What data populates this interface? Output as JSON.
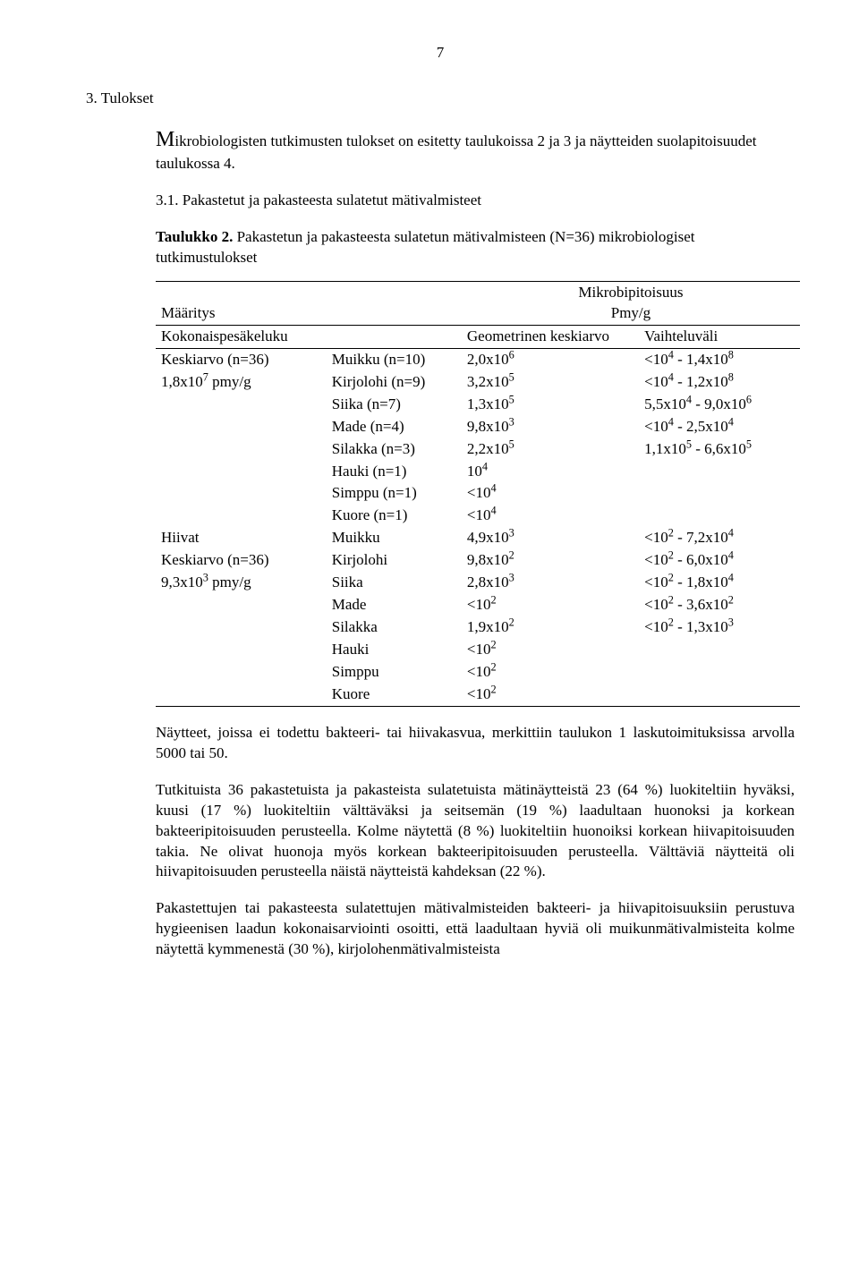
{
  "page_number": "7",
  "section_number": "3.",
  "section_title": "Tulokset",
  "para1_a": "M",
  "para1_b": "ikrobiologisten tutkimusten tulokset on esitetty taulukoissa 2 ja 3 ja näytteiden suolapitoisuudet taulukossa 4.",
  "sub_item": "3.1. Pakastetut ja pakasteesta sulatetut mätivalmisteet",
  "table_label": "Taulukko 2.",
  "table_caption": " Pakastetun ja pakasteesta sulatetun mätivalmisteen (N=36) mikrobiologiset tutkimustulokset",
  "hdr_left": "Määritys",
  "hdr_right_1": "Mikrobipitoisuus",
  "hdr_right_2": "Pmy/g",
  "sub_geo": "Geometrinen keskiarvo",
  "sub_range": "Vaihteluväli",
  "grp1_name": "Kokonaispesäkeluku",
  "grp1_avg_label": "Keskiarvo (n=36)",
  "grp1_pmy_a": "1,8x10",
  "grp1_pmy_exp": "7",
  "grp1_pmy_b": " pmy/g",
  "g1r1_sp": "Muikku (n=10)",
  "g1r1_v_a": "2,0x10",
  "g1r1_v_e": "6",
  "g1r1_r_a": "<10",
  "g1r1_r_e1": "4",
  "g1r1_r_b": " - 1,4x10",
  "g1r1_r_e2": "8",
  "g1r2_sp": "Kirjolohi (n=9)",
  "g1r2_v_a": "3,2x10",
  "g1r2_v_e": "5",
  "g1r2_r_a": "<10",
  "g1r2_r_e1": "4",
  "g1r2_r_b": " - 1,2x10",
  "g1r2_r_e2": "8",
  "g1r3_sp": "Siika (n=7)",
  "g1r3_v_a": "1,3x10",
  "g1r3_v_e": "5",
  "g1r3_r_a": "5,5x10",
  "g1r3_r_e1": "4",
  "g1r3_r_b": " - 9,0x10",
  "g1r3_r_e2": "6",
  "g1r4_sp": "Made (n=4)",
  "g1r4_v_a": "9,8x10",
  "g1r4_v_e": "3",
  "g1r4_r_a": "<10",
  "g1r4_r_e1": "4",
  "g1r4_r_b": " - 2,5x10",
  "g1r4_r_e2": "4",
  "g1r5_sp": "Silakka (n=3)",
  "g1r5_v_a": "2,2x10",
  "g1r5_v_e": "5",
  "g1r5_r_a": "1,1x10",
  "g1r5_r_e1": "5",
  "g1r5_r_b": " - 6,6x10",
  "g1r5_r_e2": "5",
  "g1r6_sp": "Hauki (n=1)",
  "g1r6_v_a": "10",
  "g1r6_v_e": "4",
  "g1r7_sp": "Simppu (n=1)",
  "g1r7_v_a": "<10",
  "g1r7_v_e": "4",
  "g1r8_sp": "Kuore (n=1)",
  "g1r8_v_a": "<10",
  "g1r8_v_e": "4",
  "grp2_name": "Hiivat",
  "grp2_avg_label": "Keskiarvo (n=36)",
  "grp2_pmy_a": "9,3x10",
  "grp2_pmy_exp": "3",
  "grp2_pmy_b": " pmy/g",
  "g2r1_sp": "Muikku",
  "g2r1_v_a": "4,9x10",
  "g2r1_v_e": "3",
  "g2r1_r_a": "<10",
  "g2r1_r_e1": "2",
  "g2r1_r_b": " - 7,2x10",
  "g2r1_r_e2": "4",
  "g2r2_sp": "Kirjolohi",
  "g2r2_v_a": "9,8x10",
  "g2r2_v_e": "2",
  "g2r2_r_a": "<10",
  "g2r2_r_e1": "2",
  "g2r2_r_b": " - 6,0x10",
  "g2r2_r_e2": "4",
  "g2r3_sp": "Siika",
  "g2r3_v_a": "2,8x10",
  "g2r3_v_e": "3",
  "g2r3_r_a": "<10",
  "g2r3_r_e1": "2",
  "g2r3_r_b": " - 1,8x10",
  "g2r3_r_e2": "4",
  "g2r4_sp": "Made",
  "g2r4_v_a": "<10",
  "g2r4_v_e": "2",
  "g2r4_r_a": "<10",
  "g2r4_r_e1": "2",
  "g2r4_r_b": " - 3,6x10",
  "g2r4_r_e2": "2",
  "g2r5_sp": "Silakka",
  "g2r5_v_a": "1,9x10",
  "g2r5_v_e": "2",
  "g2r5_r_a": "<10",
  "g2r5_r_e1": "2",
  "g2r5_r_b": " - 1,3x10",
  "g2r5_r_e2": "3",
  "g2r6_sp": "Hauki",
  "g2r6_v_a": "<10",
  "g2r6_v_e": "2",
  "g2r7_sp": "Simppu",
  "g2r7_v_a": "<10",
  "g2r7_v_e": "2",
  "g2r8_sp": "Kuore",
  "g2r8_v_a": "<10",
  "g2r8_v_e": "2",
  "para2": "Näytteet, joissa ei todettu bakteeri- tai hiivakasvua, merkittiin taulukon 1 laskutoimituksissa arvolla 5000 tai 50.",
  "para3": "Tutkituista 36 pakastetuista ja pakasteista sulatetuista mätinäytteistä 23 (64 %) luokiteltiin hyväksi, kuusi (17 %) luokiteltiin välttäväksi ja seitsemän (19 %) laadultaan huonoksi ja korkean bakteeripitoisuuden perusteella. Kolme näytettä (8 %) luokiteltiin huonoiksi korkean hiivapitoisuuden takia. Ne olivat huonoja myös korkean bakteeripitoisuuden perusteella. Välttäviä näytteitä oli hiivapitoisuuden perusteella näistä näytteistä kahdeksan (22 %).",
  "para4": "Pakastettujen tai pakasteesta sulatettujen mätivalmisteiden bakteeri- ja hiivapitoisuuksiin perustuva hygieenisen laadun kokonaisarviointi osoitti, että laadultaan hyviä oli muikunmätivalmisteita kolme näytettä kymmenestä (30 %), kirjolohenmätivalmisteista"
}
